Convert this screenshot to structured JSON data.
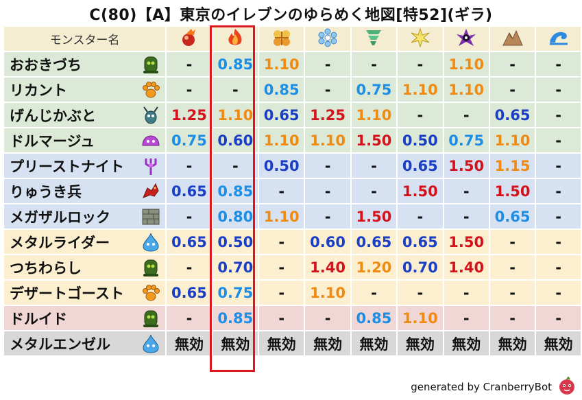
{
  "title": "C(80)【A】東京のイレブンのゆらめく地図[特52](ギラ)",
  "header_label": "モンスター名",
  "elements": [
    "mera-icon",
    "gira-icon",
    "io-icon",
    "hyado-icon",
    "bagi-icon",
    "dein-icon",
    "doruma-icon",
    "jibaria-icon",
    "merazoma-wave-icon"
  ],
  "highlighted_column": 1,
  "credit": "generated by CranberryBot",
  "monsters": [
    {
      "name": "おおきづち",
      "icon": "slime-tower-icon",
      "row": "green",
      "values": [
        "-",
        "0.85",
        "1.10",
        "-",
        "-",
        "-",
        "1.10",
        "-",
        "-"
      ],
      "colors": [
        "dash",
        "sky",
        "orange",
        "dash",
        "dash",
        "dash",
        "orange",
        "dash",
        "dash"
      ]
    },
    {
      "name": "リカント",
      "icon": "paw-icon",
      "row": "green",
      "values": [
        "-",
        "-",
        "0.85",
        "-",
        "0.75",
        "1.10",
        "1.10",
        "-",
        "-"
      ],
      "colors": [
        "dash",
        "dash",
        "sky",
        "dash",
        "sky",
        "orange",
        "orange",
        "dash",
        "dash"
      ]
    },
    {
      "name": "げんじかぶと",
      "icon": "bug-icon",
      "row": "green",
      "values": [
        "1.25",
        "1.10",
        "0.65",
        "1.25",
        "1.10",
        "-",
        "-",
        "0.65",
        "-"
      ],
      "colors": [
        "red",
        "orange",
        "blue",
        "red",
        "orange",
        "dash",
        "dash",
        "blue",
        "dash"
      ]
    },
    {
      "name": "ドルマージュ",
      "icon": "slime-purple-icon",
      "row": "green",
      "values": [
        "0.75",
        "0.60",
        "1.10",
        "1.10",
        "1.50",
        "0.50",
        "0.75",
        "1.10",
        "-"
      ],
      "colors": [
        "sky",
        "blue",
        "orange",
        "orange",
        "red",
        "blue",
        "sky",
        "orange",
        "dash"
      ]
    },
    {
      "name": "プリーストナイト",
      "icon": "trident-icon",
      "row": "blue",
      "values": [
        "-",
        "-",
        "0.50",
        "-",
        "-",
        "0.65",
        "1.50",
        "1.15",
        "-"
      ],
      "colors": [
        "dash",
        "dash",
        "blue",
        "dash",
        "dash",
        "blue",
        "red",
        "orange",
        "dash"
      ]
    },
    {
      "name": "りゅうき兵",
      "icon": "dragon-icon",
      "row": "blue",
      "values": [
        "0.65",
        "0.85",
        "-",
        "-",
        "-",
        "1.50",
        "-",
        "1.50",
        "-"
      ],
      "colors": [
        "blue",
        "sky",
        "dash",
        "dash",
        "dash",
        "red",
        "dash",
        "red",
        "dash"
      ]
    },
    {
      "name": "メガザルロック",
      "icon": "rock-icon",
      "row": "blue",
      "values": [
        "-",
        "0.80",
        "1.10",
        "-",
        "1.50",
        "-",
        "-",
        "0.65",
        "-"
      ],
      "colors": [
        "dash",
        "sky",
        "orange",
        "dash",
        "red",
        "dash",
        "dash",
        "sky",
        "dash"
      ]
    },
    {
      "name": "メタルライダー",
      "icon": "slime-icon",
      "row": "yellow",
      "values": [
        "0.65",
        "0.50",
        "-",
        "0.60",
        "0.65",
        "0.65",
        "1.50",
        "-",
        "-"
      ],
      "colors": [
        "blue",
        "blue",
        "dash",
        "blue",
        "blue",
        "blue",
        "red",
        "dash",
        "dash"
      ]
    },
    {
      "name": "つちわらし",
      "icon": "slime-tower-icon",
      "row": "yellow",
      "values": [
        "-",
        "0.70",
        "-",
        "1.40",
        "1.20",
        "0.70",
        "1.40",
        "-",
        "-"
      ],
      "colors": [
        "dash",
        "blue",
        "dash",
        "red",
        "orange",
        "blue",
        "red",
        "dash",
        "dash"
      ]
    },
    {
      "name": "デザートゴースト",
      "icon": "paw-icon",
      "row": "yellow",
      "values": [
        "0.65",
        "0.75",
        "-",
        "1.10",
        "-",
        "-",
        "-",
        "-",
        "-"
      ],
      "colors": [
        "blue",
        "sky",
        "dash",
        "orange",
        "dash",
        "dash",
        "dash",
        "dash",
        "dash"
      ]
    },
    {
      "name": "ドルイド",
      "icon": "slime-tower-icon",
      "row": "pink",
      "values": [
        "-",
        "0.85",
        "-",
        "-",
        "0.85",
        "1.10",
        "-",
        "-",
        "-"
      ],
      "colors": [
        "dash",
        "sky",
        "dash",
        "dash",
        "sky",
        "orange",
        "dash",
        "dash",
        "dash"
      ]
    },
    {
      "name": "メタルエンゼル",
      "icon": "slime-icon",
      "row": "gray",
      "values": [
        "無効",
        "無効",
        "無効",
        "無効",
        "無効",
        "無効",
        "無効",
        "無効",
        "無効"
      ],
      "colors": [
        "null",
        "null",
        "null",
        "null",
        "null",
        "null",
        "null",
        "null",
        "null"
      ]
    }
  ]
}
